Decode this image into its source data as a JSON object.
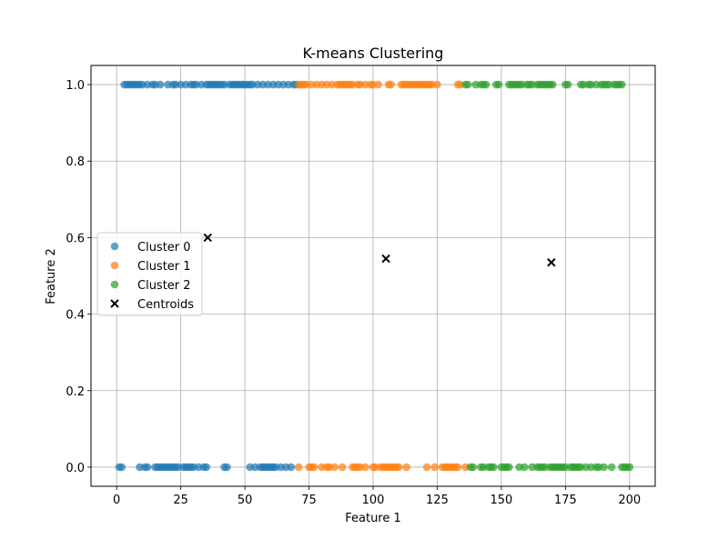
{
  "chart_data": {
    "type": "scatter",
    "title": "K-means Clustering",
    "xlabel": "Feature 1",
    "ylabel": "Feature 2",
    "xlim": [
      -10,
      210
    ],
    "ylim": [
      -0.05,
      1.05
    ],
    "xticks": [
      0,
      25,
      50,
      75,
      100,
      125,
      150,
      175,
      200
    ],
    "yticks": [
      0.0,
      0.2,
      0.4,
      0.6,
      0.8,
      1.0
    ],
    "xtick_labels": [
      "0",
      "25",
      "50",
      "75",
      "100",
      "125",
      "150",
      "175",
      "200"
    ],
    "ytick_labels": [
      "0.0",
      "0.2",
      "0.4",
      "0.6",
      "0.8",
      "1.0"
    ],
    "grid": true,
    "legend_position": "center-left",
    "series": [
      {
        "name": "Cluster 0",
        "color": "#1f77b4",
        "x1": [
          3,
          4,
          5,
          6,
          7,
          8,
          9,
          10,
          12,
          14,
          15,
          17,
          20,
          22,
          23,
          25,
          27,
          29,
          30,
          31,
          33,
          35,
          36,
          37,
          38,
          39,
          40,
          41,
          42,
          44,
          45,
          46,
          47,
          48,
          49,
          50,
          51,
          52,
          53,
          55,
          57,
          59,
          61,
          63,
          65,
          67,
          69,
          70
        ],
        "x0": [
          1,
          2,
          9,
          11,
          12,
          15,
          16,
          17,
          18,
          19,
          20,
          21,
          22,
          23,
          24,
          26,
          27,
          28,
          29,
          30,
          32,
          34,
          35,
          42,
          43,
          52,
          54,
          56,
          57,
          58,
          59,
          60,
          61,
          62,
          64,
          66,
          68
        ]
      },
      {
        "name": "Cluster 1",
        "color": "#ff7f0e",
        "x1": [
          71,
          72,
          73,
          74,
          76,
          78,
          80,
          82,
          84,
          86,
          87,
          88,
          89,
          90,
          91,
          92,
          94,
          95,
          97,
          99,
          100,
          102,
          106,
          107,
          111,
          112,
          113,
          114,
          115,
          116,
          117,
          118,
          119,
          120,
          121,
          122,
          123,
          125,
          133,
          134
        ],
        "x0": [
          71,
          75,
          76,
          77,
          80,
          82,
          83,
          85,
          88,
          92,
          93,
          94,
          95,
          97,
          100,
          101,
          103,
          104,
          105,
          106,
          107,
          108,
          109,
          110,
          113,
          121,
          124,
          127,
          128,
          129,
          130,
          131,
          132,
          133,
          136
        ]
      },
      {
        "name": "Cluster 2",
        "color": "#2ca02c",
        "x1": [
          136,
          137,
          140,
          142,
          143,
          144,
          148,
          149,
          153,
          154,
          155,
          156,
          157,
          158,
          160,
          161,
          162,
          164,
          165,
          166,
          167,
          168,
          169,
          170,
          175,
          176,
          181,
          182,
          184,
          185,
          187,
          189,
          190,
          191,
          192,
          194,
          195,
          196,
          197
        ],
        "x0": [
          138,
          139,
          142,
          143,
          145,
          146,
          147,
          150,
          151,
          152,
          153,
          157,
          159,
          162,
          164,
          165,
          166,
          167,
          169,
          170,
          171,
          172,
          173,
          174,
          175,
          177,
          178,
          179,
          180,
          181,
          183,
          185,
          187,
          188,
          190,
          193,
          197,
          198,
          199,
          200
        ]
      }
    ],
    "centroids": {
      "name": "Centroids",
      "color": "#000000",
      "points": [
        [
          35.5,
          0.6
        ],
        [
          105,
          0.545
        ],
        [
          169.5,
          0.535
        ]
      ]
    }
  }
}
